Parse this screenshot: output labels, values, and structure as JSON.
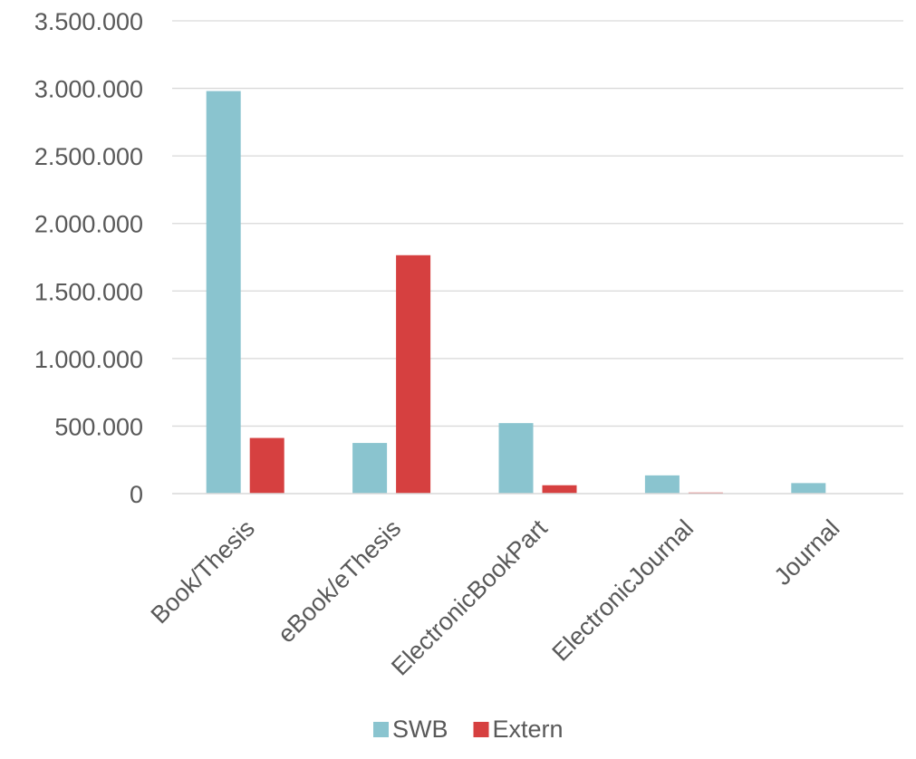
{
  "chart_data": {
    "type": "bar",
    "title": "",
    "xlabel": "",
    "ylabel": "",
    "categories": [
      "Book/Thesis",
      "eBook/eThesis",
      "ElectronicBookPart",
      "ElectronicJournal",
      "Journal"
    ],
    "series": [
      {
        "name": "SWB",
        "color": "#8ac4cf",
        "values": [
          2980000,
          375000,
          522000,
          135000,
          78000
        ]
      },
      {
        "name": "Extern",
        "color": "#d64040",
        "values": [
          412000,
          1765000,
          62000,
          8000,
          0
        ]
      }
    ],
    "ylim": [
      0,
      3500000
    ],
    "yticks": [
      0,
      500000,
      1000000,
      1500000,
      2000000,
      2500000,
      3000000,
      3500000
    ],
    "ytick_labels": [
      "0",
      "500.000",
      "1.000.000",
      "1.500.000",
      "2.000.000",
      "2.500.000",
      "3.000.000",
      "3.500.000"
    ],
    "grid": true,
    "legend_position": "bottom",
    "xtick_rotation": -45
  }
}
